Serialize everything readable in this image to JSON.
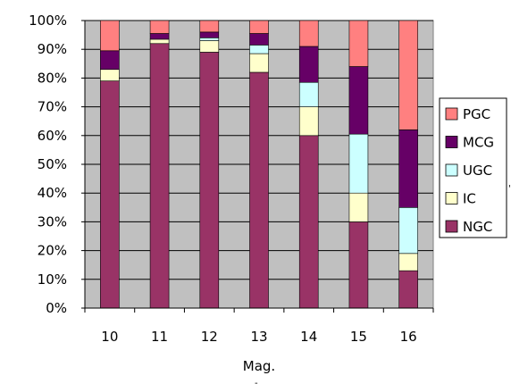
{
  "chart_data": {
    "type": "bar",
    "stacked": "percent",
    "categories": [
      "10",
      "11",
      "12",
      "13",
      "14",
      "15",
      "16"
    ],
    "xlabel": "Mag.",
    "ylabel": "",
    "ylim": [
      0,
      100
    ],
    "yticks": [
      "0%",
      "10%",
      "20%",
      "30%",
      "40%",
      "50%",
      "60%",
      "70%",
      "80%",
      "90%",
      "100%"
    ],
    "grid": true,
    "legend_position": "right",
    "series": [
      {
        "name": "NGC",
        "color": "#993366",
        "values": [
          79,
          92,
          89,
          82,
          60,
          30,
          13
        ]
      },
      {
        "name": "IC",
        "color": "#FFFFCC",
        "values": [
          4,
          1.5,
          4,
          6.5,
          10,
          10,
          6
        ]
      },
      {
        "name": "UGC",
        "color": "#CCFFFF",
        "values": [
          0,
          0,
          1,
          3,
          8.5,
          20.5,
          16
        ]
      },
      {
        "name": "MCG",
        "color": "#660066",
        "values": [
          6.5,
          2,
          2,
          4,
          12.5,
          23.5,
          27
        ]
      },
      {
        "name": "PGC",
        "color": "#FF8080",
        "values": [
          10.5,
          4.5,
          4,
          4.5,
          9,
          16,
          38
        ]
      }
    ],
    "plot_background": "#C0C0C0",
    "legend_order": [
      "PGC",
      "MCG",
      "UGC",
      "IC",
      "NGC"
    ]
  }
}
